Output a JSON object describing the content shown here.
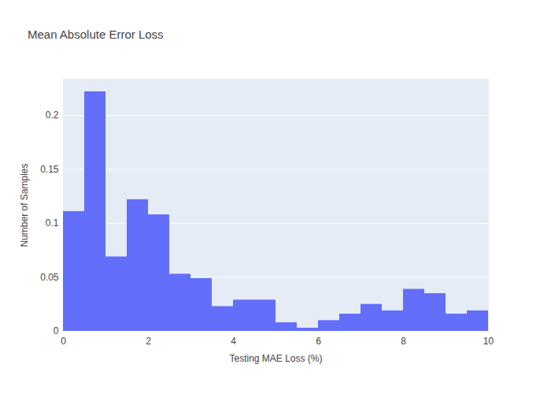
{
  "chart_data": {
    "type": "histogram",
    "title": "Mean Absolute Error Loss",
    "x_label": "Testing MAE Loss (%)",
    "y_label": "Number of Samples",
    "bins": [
      0,
      0.5,
      1,
      1.5,
      2,
      2.5,
      3,
      3.5,
      4,
      4.5,
      5,
      5.5,
      6,
      6.5,
      7,
      7.5,
      8,
      8.5,
      9,
      9.5,
      10
    ],
    "values": [
      0.111,
      0.222,
      0.069,
      0.122,
      0.108,
      0.053,
      0.049,
      0.023,
      0.029,
      0.029,
      0.008,
      0.003,
      0.01,
      0.016,
      0.025,
      0.019,
      0.039,
      0.035,
      0.016,
      0.019
    ],
    "color": "#636efa",
    "xlim": [
      0,
      10
    ],
    "xticks": [
      0,
      2,
      4,
      6,
      8,
      10
    ],
    "ylim": [
      0,
      0.2336
    ],
    "yticks": [
      0,
      0.05,
      0.1,
      0.15,
      0.2
    ],
    "grid": true
  }
}
